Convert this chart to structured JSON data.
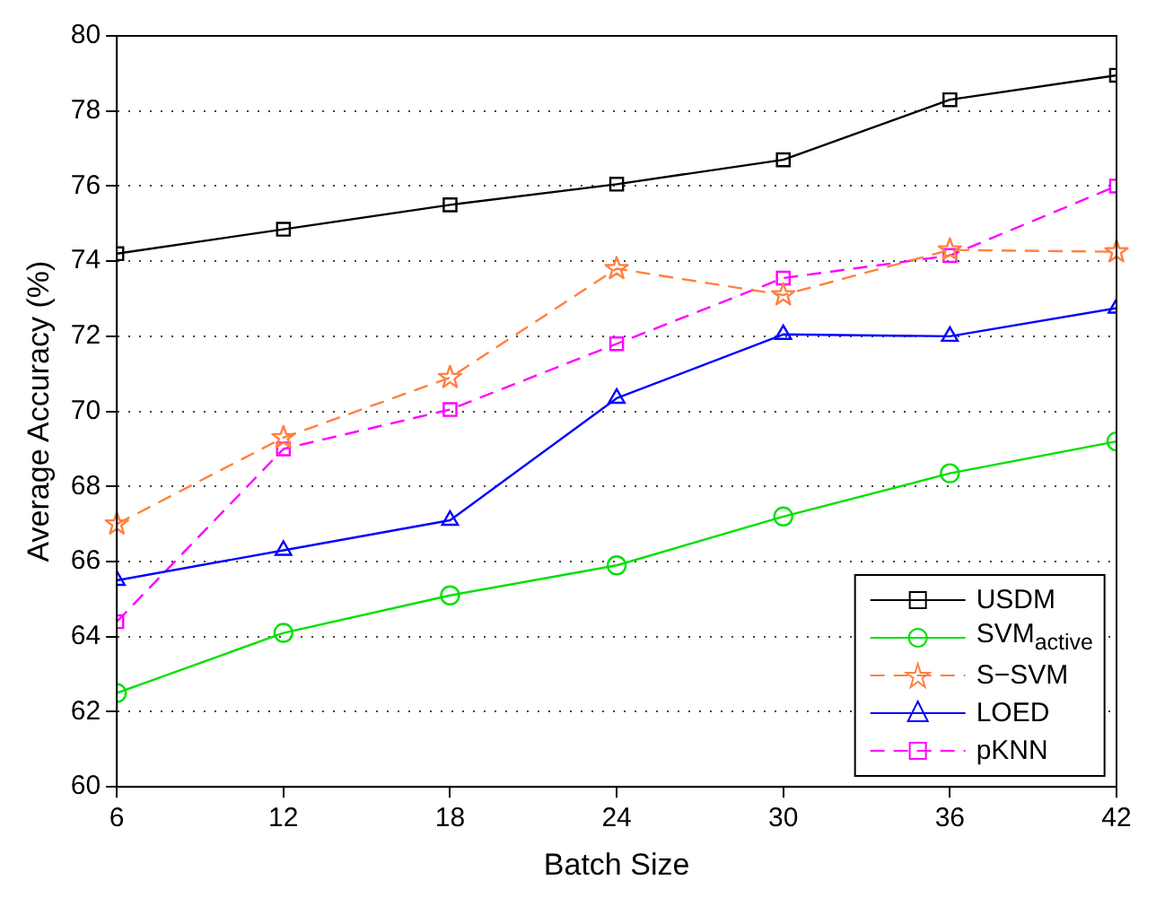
{
  "chart_data": {
    "type": "line",
    "xlabel": "Batch Size",
    "ylabel": "Average Accuracy (%)",
    "x": [
      6,
      12,
      18,
      24,
      30,
      36,
      42
    ],
    "xlim": [
      6,
      42
    ],
    "xticks": [
      6,
      12,
      18,
      24,
      30,
      36,
      42
    ],
    "ylim": [
      60,
      80
    ],
    "yticks": [
      60,
      62,
      64,
      66,
      68,
      70,
      72,
      74,
      76,
      78,
      80
    ],
    "grid": "y",
    "legend": "bottom right",
    "series": [
      {
        "name": "USDM",
        "color": "#000000",
        "marker": "square",
        "line_style": "solid",
        "values": [
          74.2,
          74.85,
          75.5,
          76.05,
          76.7,
          78.3,
          78.95
        ]
      },
      {
        "name": "SVM$_{active}$",
        "color": "#00e000",
        "marker": "circle",
        "line_style": "solid",
        "values": [
          62.5,
          64.1,
          65.1,
          65.9,
          67.2,
          68.35,
          69.2
        ]
      },
      {
        "name": "S−SVM",
        "color": "#ff8040",
        "marker": "star",
        "line_style": "dashed",
        "values": [
          67.0,
          69.3,
          70.9,
          73.8,
          73.1,
          74.3,
          74.25
        ]
      },
      {
        "name": "LOED",
        "color": "#0000ff",
        "marker": "triangle",
        "line_style": "solid",
        "values": [
          65.5,
          66.3,
          67.1,
          70.35,
          72.05,
          72.0,
          72.75
        ]
      },
      {
        "name": "pKNN",
        "color": "#ff00ff",
        "marker": "square",
        "line_style": "dashed",
        "values": [
          64.4,
          69.0,
          70.05,
          71.8,
          73.55,
          74.15,
          76.0
        ]
      }
    ]
  }
}
